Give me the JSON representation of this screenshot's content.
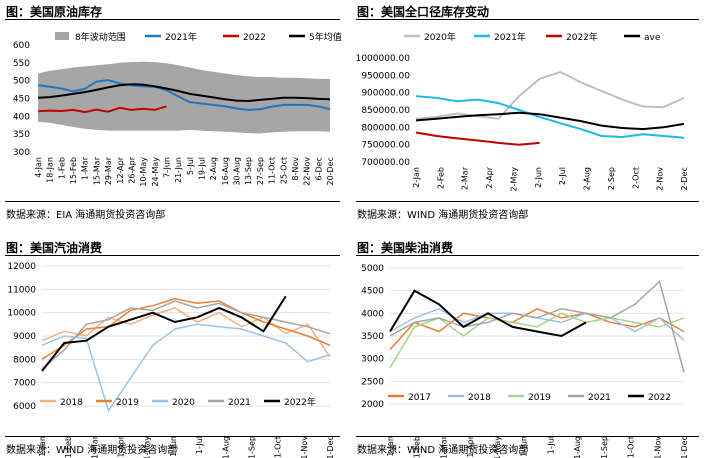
{
  "colors": {
    "grey_band": "#a6a6a6",
    "blue": "#1f77c4",
    "red": "#c00000",
    "black": "#000000",
    "light_grey": "#bfbfbf",
    "cyan": "#20b8e8",
    "orange": "#ed7d31",
    "light_orange": "#f4b183",
    "light_blue": "#9dc3e6",
    "medium_grey": "#a5a5a5",
    "green": "#a9d18e"
  },
  "panels": [
    {
      "title": "图：美国原油库存",
      "source": "数据来源：EIA   海通期货投资咨询部"
    },
    {
      "title": "图：美国全口径库存变动",
      "source": "数据来源：WIND   海通期货投资咨询部"
    },
    {
      "title": "图：美国汽油消费",
      "source": "数据来源：WIND   海通期货投资咨询部"
    },
    {
      "title": "图：美国柴油消费",
      "source": "数据来源：WIND   海通期货投资咨询部"
    }
  ],
  "chart_data": [
    {
      "type": "line",
      "title": "图：美国原油库存",
      "y_ticks": [
        300,
        350,
        400,
        450,
        500,
        550,
        600
      ],
      "ylim": [
        300,
        600
      ],
      "x_tick_labels": [
        "4-Jan",
        "18-Jan",
        "1-Feb",
        "15-Feb",
        "1-Mar",
        "15-Mar",
        "29-Mar",
        "12-Apr",
        "26-Apr",
        "10-May",
        "24-May",
        "7-Jun",
        "21-Jun",
        "5-Jul",
        "19-Jul",
        "2-Aug",
        "16-Aug",
        "30-Aug",
        "13-Sep",
        "27-Sep",
        "11-Oct",
        "25-Oct",
        "8-Nov",
        "22-Nov",
        "6-Dec",
        "20-Dec"
      ],
      "legend": [
        "8年波动范围",
        "2021年",
        "2022",
        "5年均值"
      ],
      "band": {
        "name": "8年波动范围",
        "upper": [
          520,
          528,
          532,
          537,
          540,
          543,
          546,
          550,
          552,
          553,
          552,
          549,
          543,
          537,
          530,
          525,
          520,
          516,
          512,
          510,
          510,
          508,
          508,
          507,
          505,
          505
        ],
        "lower": [
          385,
          382,
          376,
          370,
          365,
          362,
          360,
          360,
          360,
          360,
          360,
          360,
          360,
          362,
          360,
          358,
          357,
          355,
          353,
          352,
          355,
          357,
          358,
          358,
          358,
          357
        ]
      },
      "series": [
        {
          "name": "2021年",
          "values": [
            487,
            483,
            478,
            470,
            477,
            497,
            502,
            492,
            487,
            484,
            483,
            473,
            456,
            440,
            436,
            432,
            428,
            422,
            418,
            420,
            427,
            432,
            432,
            432,
            428,
            420
          ]
        },
        {
          "name": "2022",
          "values": [
            414,
            416,
            415,
            418,
            412,
            419,
            413,
            424,
            418,
            421,
            418,
            428
          ]
        },
        {
          "name": "5年均值",
          "values": [
            452,
            454,
            458,
            463,
            468,
            474,
            481,
            487,
            490,
            489,
            484,
            478,
            471,
            463,
            458,
            453,
            448,
            444,
            443,
            446,
            449,
            452,
            452,
            451,
            449,
            448
          ]
        }
      ]
    },
    {
      "type": "line",
      "title": "图：美国全口径库存变动",
      "y_ticks": [
        "700000.00",
        "750000.00",
        "800000.00",
        "850000.00",
        "900000.00",
        "950000.00",
        "1000000.00"
      ],
      "ylim": [
        700000,
        1000000
      ],
      "x_tick_labels": [
        "2-Jan",
        "2-Feb",
        "2-Mar",
        "2-Apr",
        "2-May",
        "2-Jun",
        "2-Jul",
        "2-Aug",
        "2-Sep",
        "2-Oct",
        "2-Nov",
        "2-Dec"
      ],
      "legend": [
        "2020年",
        "2021年",
        "2022年",
        "ave"
      ],
      "series": [
        {
          "name": "2020年",
          "values": [
            825000,
            830000,
            840000,
            832000,
            825000,
            890000,
            940000,
            960000,
            930000,
            905000,
            880000,
            860000,
            858000,
            885000
          ]
        },
        {
          "name": "2021年",
          "values": [
            890000,
            885000,
            875000,
            880000,
            870000,
            850000,
            830000,
            812000,
            795000,
            775000,
            772000,
            780000,
            775000,
            770000
          ]
        },
        {
          "name": "2022年",
          "values": [
            785000,
            775000,
            768000,
            762000,
            755000,
            750000,
            755000
          ]
        },
        {
          "name": "ave",
          "values": [
            820000,
            825000,
            830000,
            835000,
            838000,
            842000,
            838000,
            828000,
            818000,
            805000,
            798000,
            795000,
            800000,
            810000
          ]
        }
      ]
    },
    {
      "type": "line",
      "title": "图：美国汽油消费",
      "y_ticks": [
        6000,
        7000,
        8000,
        9000,
        10000,
        11000,
        12000
      ],
      "ylim": [
        6000,
        12000
      ],
      "x_tick_labels": [
        "1-Jan",
        "1-Feb",
        "1-Mar",
        "1-Apr",
        "1-May",
        "1-Jun",
        "1-Jul",
        "1-Aug",
        "1-Sep",
        "1-Oct",
        "1-Nov",
        "1-Dec"
      ],
      "legend": [
        "2018",
        "2019",
        "2020",
        "2021",
        "2022年"
      ],
      "series": [
        {
          "name": "2018",
          "values": [
            8800,
            9200,
            9000,
            9800,
            9500,
            9900,
            10200,
            9600,
            10000,
            9400,
            9800,
            9100,
            9500,
            8100
          ]
        },
        {
          "name": "2019",
          "values": [
            8000,
            8600,
            9300,
            9400,
            10100,
            10300,
            10600,
            10400,
            10500,
            10000,
            9600,
            9300,
            9000,
            8600
          ]
        },
        {
          "name": "2020",
          "values": [
            8600,
            9000,
            8900,
            5800,
            7200,
            8600,
            9300,
            9500,
            9400,
            9300,
            9000,
            8700,
            7900,
            8200
          ]
        },
        {
          "name": "2021",
          "values": [
            7600,
            8400,
            9500,
            9700,
            10200,
            10100,
            10500,
            10200,
            10400,
            10000,
            9800,
            9600,
            9400,
            9100
          ]
        },
        {
          "name": "2022年",
          "values": [
            7500,
            8700,
            8800,
            9400,
            9700,
            10000,
            9600,
            9800,
            10200,
            9800,
            9200,
            10700
          ]
        }
      ]
    },
    {
      "type": "line",
      "title": "图：美国柴油消费",
      "y_ticks": [
        2000,
        2500,
        3000,
        3500,
        4000,
        4500,
        5000
      ],
      "ylim": [
        2000,
        5000
      ],
      "x_tick_labels": [
        "1-Jan",
        "1-Feb",
        "1-Mar",
        "1-Apr",
        "1-May",
        "1-Jun",
        "1-Jul",
        "1-Aug",
        "1-Sep",
        "1-Oct",
        "1-Nov",
        "1-Dec"
      ],
      "legend": [
        "2017",
        "2018",
        "2019",
        "2021",
        "2022"
      ],
      "series": [
        {
          "name": "2017",
          "values": [
            3200,
            3800,
            3600,
            4000,
            3900,
            3800,
            4100,
            3900,
            4000,
            3800,
            3700,
            3900,
            3600
          ]
        },
        {
          "name": "2018",
          "values": [
            3600,
            3900,
            4100,
            3800,
            4000,
            4000,
            3900,
            3800,
            4000,
            3900,
            3600,
            3900,
            3400
          ]
        },
        {
          "name": "2019",
          "values": [
            2800,
            3700,
            3900,
            3500,
            3900,
            3800,
            3700,
            4000,
            3800,
            3900,
            3800,
            3700,
            3900
          ]
        },
        {
          "name": "2021",
          "values": [
            3500,
            3800,
            3900,
            3700,
            3800,
            4000,
            3900,
            4100,
            4000,
            3900,
            4200,
            4700,
            2700
          ]
        },
        {
          "name": "2022",
          "values": [
            3600,
            4500,
            4200,
            3700,
            4000,
            3700,
            3600,
            3500,
            3800
          ]
        }
      ]
    }
  ]
}
